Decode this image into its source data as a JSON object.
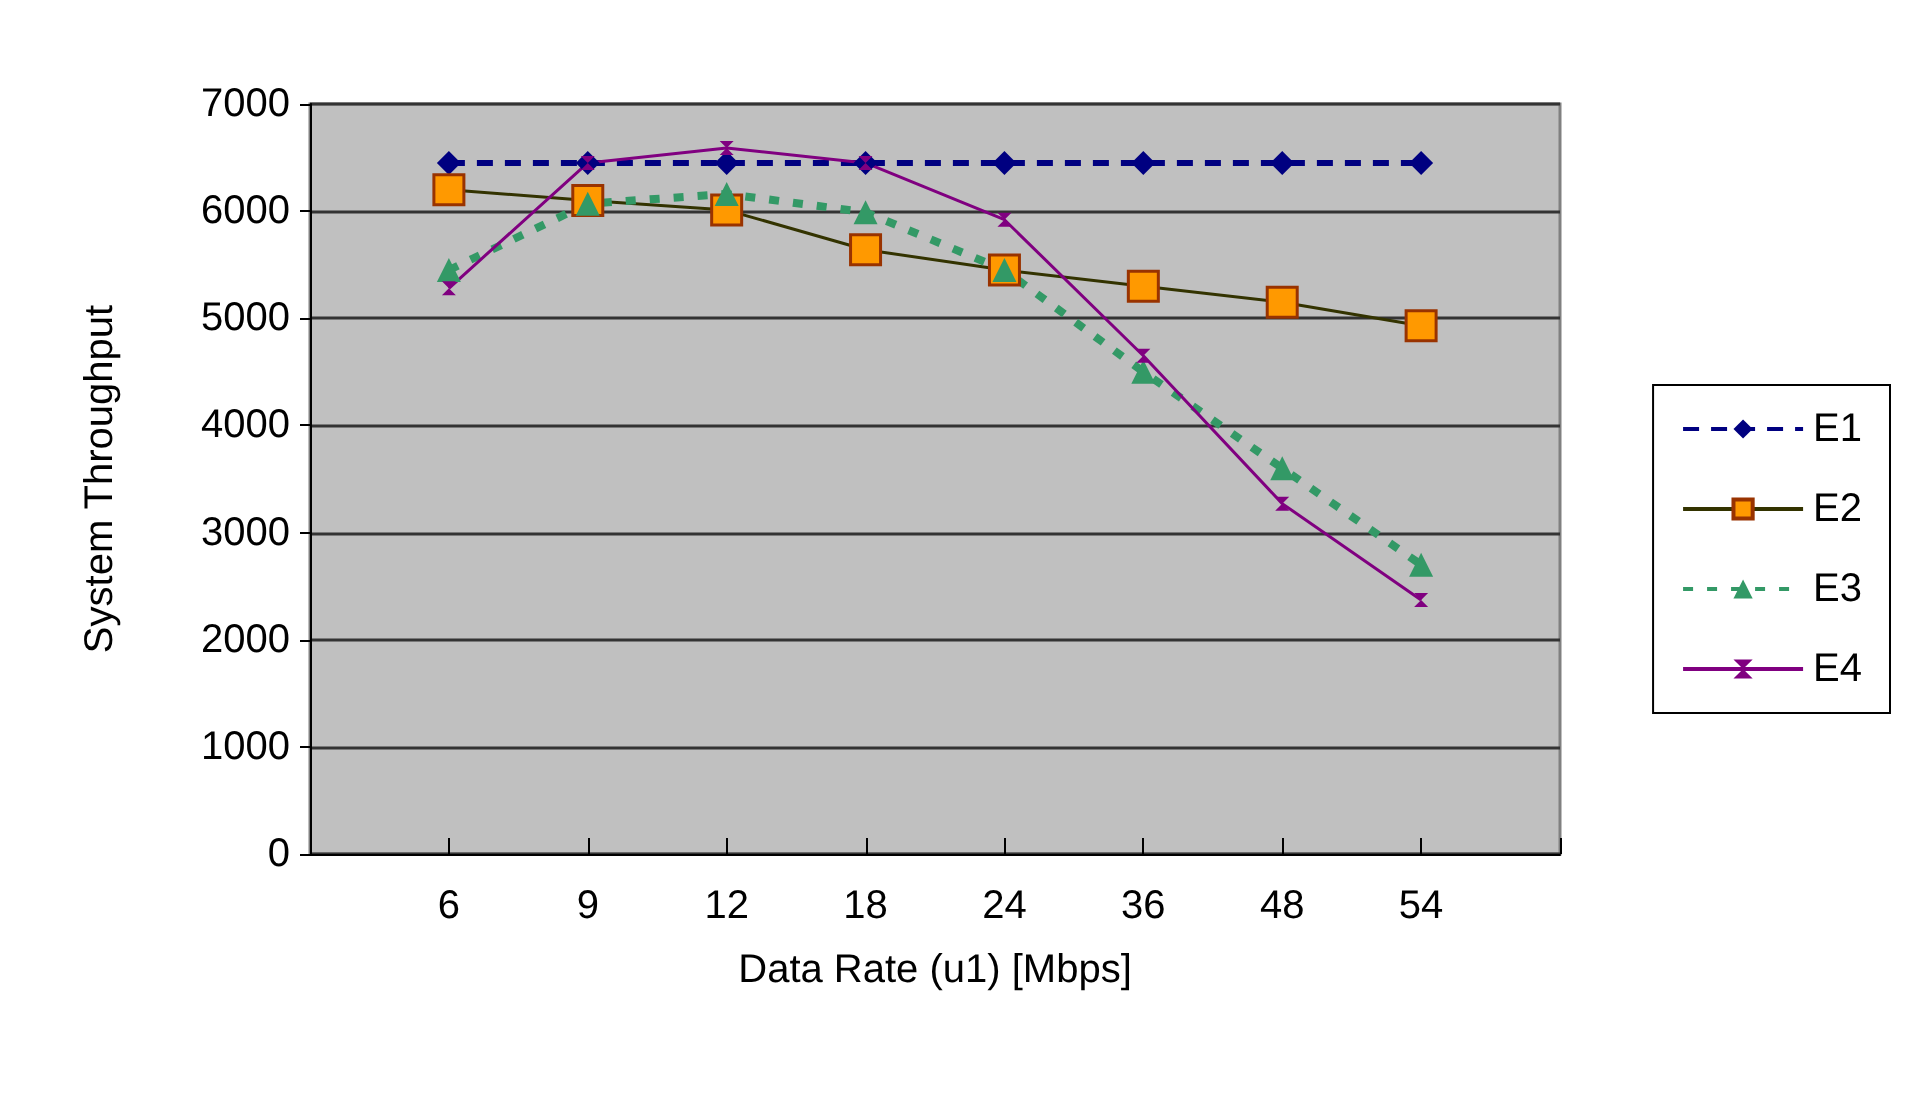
{
  "chart_data": {
    "type": "line",
    "xlabel": "Data Rate (u1) [Mbps]",
    "ylabel": "System Throughput",
    "categories": [
      "6",
      "9",
      "12",
      "18",
      "24",
      "36",
      "48",
      "54"
    ],
    "ylim": [
      0,
      7000
    ],
    "yticks": [
      0,
      1000,
      2000,
      3000,
      4000,
      5000,
      6000,
      7000
    ],
    "grid": "y",
    "legend": "right",
    "series": [
      {
        "name": "E1",
        "color": "#000080",
        "marker": "diamond",
        "line_style": "dashed",
        "values": [
          6450,
          6450,
          6450,
          6450,
          6450,
          6450,
          6450,
          6450
        ]
      },
      {
        "name": "E2",
        "color": "#333300",
        "marker": "square",
        "line_style": "solid",
        "values": [
          6200,
          6100,
          6010,
          5640,
          5450,
          5300,
          5150,
          4930
        ]
      },
      {
        "name": "E3",
        "color": "#339966",
        "marker": "triangle",
        "line_style": "dotted",
        "values": [
          5450,
          6070,
          6160,
          5990,
          5450,
          4500,
          3600,
          2700
        ]
      },
      {
        "name": "E4",
        "color": "#800080",
        "marker": "cross",
        "line_style": "solid",
        "values": [
          5280,
          6450,
          6590,
          6450,
          5920,
          4650,
          3270,
          2370
        ]
      }
    ]
  }
}
